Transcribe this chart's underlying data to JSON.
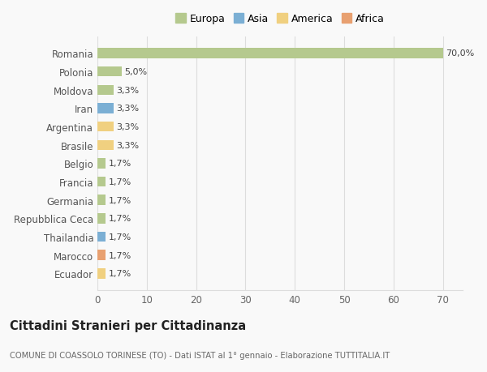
{
  "countries": [
    "Romania",
    "Polonia",
    "Moldova",
    "Iran",
    "Argentina",
    "Brasile",
    "Belgio",
    "Francia",
    "Germania",
    "Repubblica Ceca",
    "Thailandia",
    "Marocco",
    "Ecuador"
  ],
  "values": [
    70.0,
    5.0,
    3.3,
    3.3,
    3.3,
    3.3,
    1.7,
    1.7,
    1.7,
    1.7,
    1.7,
    1.7,
    1.7
  ],
  "labels": [
    "70,0%",
    "5,0%",
    "3,3%",
    "3,3%",
    "3,3%",
    "3,3%",
    "1,7%",
    "1,7%",
    "1,7%",
    "1,7%",
    "1,7%",
    "1,7%",
    "1,7%"
  ],
  "continents": [
    "Europa",
    "Europa",
    "Europa",
    "Asia",
    "America",
    "America",
    "Europa",
    "Europa",
    "Europa",
    "Europa",
    "Asia",
    "Africa",
    "America"
  ],
  "continent_colors": {
    "Europa": "#b5c98e",
    "Asia": "#7bafd4",
    "America": "#f0d080",
    "Africa": "#e8a070"
  },
  "legend_order": [
    "Europa",
    "Asia",
    "America",
    "Africa"
  ],
  "title": "Cittadini Stranieri per Cittadinanza",
  "subtitle": "COMUNE DI COASSOLO TORINESE (TO) - Dati ISTAT al 1° gennaio - Elaborazione TUTTITALIA.IT",
  "xlim": [
    0,
    74
  ],
  "xticks": [
    0,
    10,
    20,
    30,
    40,
    50,
    60,
    70
  ],
  "bg_color": "#f9f9f9",
  "grid_color": "#dddddd",
  "bar_height": 0.55
}
